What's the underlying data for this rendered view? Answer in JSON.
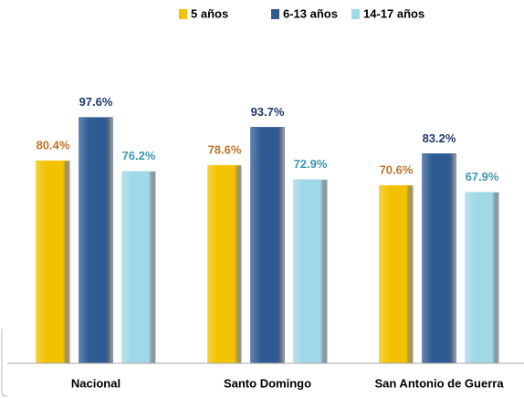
{
  "chart_data": {
    "type": "bar",
    "categories": [
      "Nacional",
      "Santo Domingo",
      "San Antonio de Guerra"
    ],
    "series": [
      {
        "name": "5 años",
        "color": "#f2c200",
        "label_color": "#c0732a",
        "values": [
          80.4,
          78.6,
          70.6
        ],
        "value_labels": [
          "80.4%",
          "78.6%",
          "70.6%"
        ]
      },
      {
        "name": "6-13 años",
        "color": "#2f5b93",
        "label_color": "#1f3a6e",
        "values": [
          97.6,
          93.7,
          83.2
        ],
        "value_labels": [
          "97.6%",
          "93.7%",
          "83.2%"
        ]
      },
      {
        "name": "14-17 años",
        "color": "#9fd8e6",
        "label_color": "#3a9bb0",
        "values": [
          76.2,
          72.9,
          67.9
        ],
        "value_labels": [
          "76.2%",
          "72.9%",
          "67.9%"
        ]
      }
    ],
    "ylim": [
      0,
      100
    ],
    "legend": "top"
  }
}
